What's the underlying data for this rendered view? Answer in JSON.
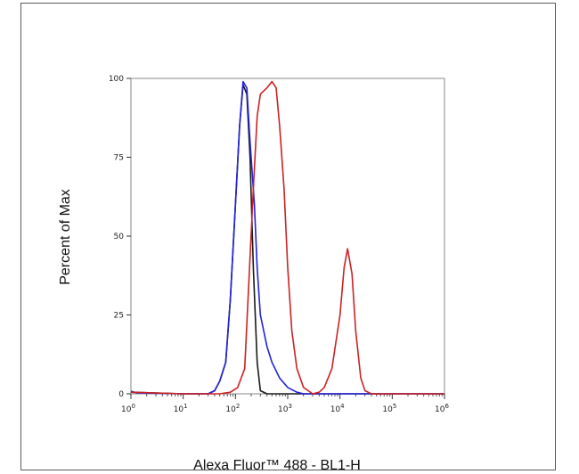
{
  "chart_data": {
    "type": "line",
    "xlabel": "Alexa Fluor™ 488 - BL1-H",
    "ylabel": "Percent of Max",
    "x_scale": "log",
    "xlim": [
      1,
      1000000
    ],
    "ylim": [
      0,
      100
    ],
    "x_ticks": [
      {
        "value": 1,
        "base": "10",
        "exp": "0"
      },
      {
        "value": 10,
        "base": "10",
        "exp": "1"
      },
      {
        "value": 100,
        "base": "10",
        "exp": "2"
      },
      {
        "value": 1000,
        "base": "10",
        "exp": "3"
      },
      {
        "value": 10000,
        "base": "10",
        "exp": "4"
      },
      {
        "value": 100000,
        "base": "10",
        "exp": "5"
      },
      {
        "value": 1000000,
        "base": "10",
        "exp": "6"
      }
    ],
    "y_ticks": [
      {
        "value": 0,
        "label": "0"
      },
      {
        "value": 25,
        "label": "25"
      },
      {
        "value": 50,
        "label": "50"
      },
      {
        "value": 75,
        "label": "75"
      },
      {
        "value": 100,
        "label": "100"
      }
    ],
    "grid": false,
    "legend": "none",
    "series": [
      {
        "color": "#1a1a1a",
        "points": [
          [
            1,
            0.5
          ],
          [
            10,
            0
          ],
          [
            30,
            0
          ],
          [
            40,
            1
          ],
          [
            50,
            4
          ],
          [
            65,
            10
          ],
          [
            80,
            30
          ],
          [
            100,
            60
          ],
          [
            120,
            85
          ],
          [
            140,
            98
          ],
          [
            165,
            95
          ],
          [
            190,
            75
          ],
          [
            220,
            40
          ],
          [
            260,
            10
          ],
          [
            300,
            1
          ],
          [
            400,
            0
          ],
          [
            1000,
            0
          ],
          [
            10000,
            0
          ],
          [
            100000,
            0
          ],
          [
            1000000,
            0
          ]
        ]
      },
      {
        "color": "#2222dd",
        "points": [
          [
            1,
            0.8
          ],
          [
            1.3,
            0.3
          ],
          [
            10,
            0
          ],
          [
            30,
            0
          ],
          [
            40,
            1
          ],
          [
            50,
            4
          ],
          [
            65,
            10
          ],
          [
            80,
            30
          ],
          [
            100,
            60
          ],
          [
            120,
            85
          ],
          [
            140,
            99
          ],
          [
            165,
            97
          ],
          [
            190,
            80
          ],
          [
            230,
            60
          ],
          [
            260,
            40
          ],
          [
            300,
            25
          ],
          [
            400,
            15
          ],
          [
            500,
            10
          ],
          [
            700,
            5
          ],
          [
            1000,
            2
          ],
          [
            1500,
            0.5
          ],
          [
            2000,
            0
          ],
          [
            10000,
            0
          ],
          [
            100000,
            0
          ],
          [
            1000000,
            0
          ]
        ]
      },
      {
        "color": "#cc2222",
        "points": [
          [
            1,
            0.5
          ],
          [
            10,
            0
          ],
          [
            50,
            0
          ],
          [
            80,
            0.5
          ],
          [
            110,
            2
          ],
          [
            150,
            8
          ],
          [
            180,
            35
          ],
          [
            220,
            65
          ],
          [
            260,
            88
          ],
          [
            300,
            95
          ],
          [
            400,
            97
          ],
          [
            500,
            99
          ],
          [
            600,
            97
          ],
          [
            700,
            85
          ],
          [
            850,
            65
          ],
          [
            1000,
            40
          ],
          [
            1200,
            20
          ],
          [
            1500,
            8
          ],
          [
            2000,
            2
          ],
          [
            3000,
            0
          ],
          [
            4000,
            0.5
          ],
          [
            5000,
            2
          ],
          [
            7000,
            8
          ],
          [
            10000,
            25
          ],
          [
            12000,
            40
          ],
          [
            14000,
            46
          ],
          [
            17000,
            38
          ],
          [
            20000,
            20
          ],
          [
            25000,
            5
          ],
          [
            30000,
            1
          ],
          [
            40000,
            0
          ],
          [
            100000,
            0
          ],
          [
            1000000,
            0
          ]
        ]
      }
    ]
  }
}
